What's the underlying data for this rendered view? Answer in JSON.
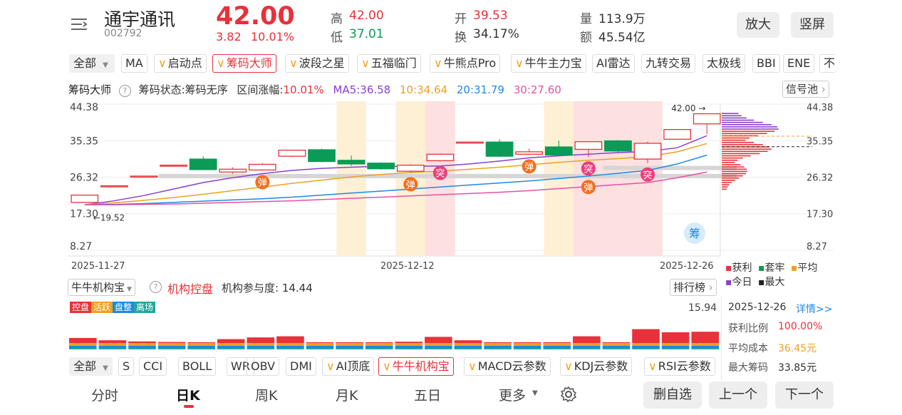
{
  "header": {
    "stock_name": "通宇通讯",
    "stock_code": "002792",
    "price": "42.00",
    "change": "3.82",
    "change_pct": "10.01%",
    "high_label": "高",
    "high": "42.00",
    "low_label": "低",
    "low": "37.01",
    "open_label": "开",
    "open": "39.53",
    "turnover_label": "换",
    "turnover": "34.17%",
    "volume_label": "量",
    "volume": "113.9万",
    "amount_label": "额",
    "amount": "45.54亿",
    "zoom_label": "放大",
    "portrait_label": "竖屏"
  },
  "indicator_tabs": {
    "all_label": "全部",
    "items": [
      "MA",
      "启动点",
      "筹码大师",
      "波段之星",
      "五福临门",
      "牛熊点Pro",
      "牛牛主力宝",
      "AI雷达",
      "九转交易",
      "太极线",
      "BBI",
      "ENE",
      "不"
    ],
    "v_items": [
      false,
      true,
      true,
      true,
      true,
      true,
      true,
      false,
      false,
      false,
      false,
      false,
      false
    ],
    "selected": "筹码大师"
  },
  "chip_bar": {
    "title": "筹码大师",
    "status": "筹码状态:筹码无序",
    "range_label": "区间涨幅:",
    "range_value": "10.01%",
    "ma5": "MA5:36.58",
    "ma10": "10:34.64",
    "ma20": "20:31.79",
    "ma30": "30:27.60",
    "signal_pool": "信号池"
  },
  "colors": {
    "up": "#e8313a",
    "down": "#0b9b56",
    "ma5": "#8a3fd1",
    "ma10": "#f0a020",
    "ma20": "#1e88e5",
    "ma30": "#e84fa8"
  },
  "chart_data": {
    "type": "candlestick",
    "y_ticks": [
      "44.38",
      "35.35",
      "26.32",
      "17.30",
      "8.27"
    ],
    "ylim": [
      8.27,
      44.38
    ],
    "x_labels": [
      "2025-11-27",
      "2025-12-12",
      "2025-12-26"
    ],
    "candles": [
      {
        "o": 20.1,
        "c": 21.9,
        "h": 21.9,
        "l": 20.1
      },
      {
        "o": 24.2,
        "c": 24.2,
        "h": 24.2,
        "l": 24.2
      },
      {
        "o": 26.6,
        "c": 26.6,
        "h": 26.6,
        "l": 26.6
      },
      {
        "o": 29.3,
        "c": 29.3,
        "h": 29.3,
        "l": 29.3
      },
      {
        "o": 30.8,
        "c": 28.2,
        "h": 31.5,
        "l": 28.2
      },
      {
        "o": 27.6,
        "c": 28.3,
        "h": 28.8,
        "l": 27.1
      },
      {
        "o": 28.1,
        "c": 29.5,
        "h": 29.8,
        "l": 27.9
      },
      {
        "o": 31.5,
        "c": 33.0,
        "h": 33.0,
        "l": 31.3
      },
      {
        "o": 33.1,
        "c": 30.2,
        "h": 33.4,
        "l": 30.0
      },
      {
        "o": 30.5,
        "c": 29.6,
        "h": 31.7,
        "l": 29.1
      },
      {
        "o": 29.8,
        "c": 28.4,
        "h": 30.0,
        "l": 28.2
      },
      {
        "o": 27.8,
        "c": 29.3,
        "h": 29.5,
        "l": 27.4
      },
      {
        "o": 30.4,
        "c": 32.0,
        "h": 32.2,
        "l": 30.2
      },
      {
        "o": 35.0,
        "c": 35.0,
        "h": 35.0,
        "l": 35.0
      },
      {
        "o": 35.0,
        "c": 31.5,
        "h": 35.7,
        "l": 31.4
      },
      {
        "o": 32.0,
        "c": 32.6,
        "h": 33.4,
        "l": 31.8
      },
      {
        "o": 33.8,
        "c": 31.8,
        "h": 35.4,
        "l": 31.8
      },
      {
        "o": 33.2,
        "c": 35.1,
        "h": 35.1,
        "l": 31.3
      },
      {
        "o": 35.3,
        "c": 32.8,
        "h": 35.5,
        "l": 32.2
      },
      {
        "o": 30.8,
        "c": 34.7,
        "h": 35.1,
        "l": 29.8
      },
      {
        "o": 35.7,
        "c": 38.1,
        "h": 38.2,
        "l": 35.7
      },
      {
        "o": 39.5,
        "c": 42.0,
        "h": 42.0,
        "l": 37.0
      }
    ],
    "series": [
      {
        "name": "MA5",
        "values": [
          19.5,
          20.5,
          21.8,
          23.4,
          25.0,
          26.2,
          27.2,
          28.0,
          28.5,
          28.8,
          29.0,
          29.0,
          29.1,
          29.6,
          30.3,
          31.1,
          31.6,
          32.0,
          32.4,
          32.7,
          33.6,
          36.58
        ]
      },
      {
        "name": "10",
        "values": [
          19.5,
          20.0,
          20.6,
          21.3,
          22.1,
          23.0,
          23.9,
          24.8,
          25.6,
          26.4,
          27.0,
          27.5,
          27.8,
          28.3,
          28.8,
          29.4,
          30.0,
          30.5,
          30.9,
          31.4,
          32.6,
          34.64
        ]
      },
      {
        "name": "20",
        "values": [
          19.5,
          19.6,
          19.8,
          20.1,
          20.4,
          20.7,
          21.0,
          21.4,
          21.9,
          22.4,
          22.9,
          23.4,
          23.9,
          24.4,
          24.9,
          25.4,
          26.0,
          26.6,
          27.3,
          28.0,
          29.6,
          31.79
        ]
      },
      {
        "name": "30",
        "values": [
          19.5,
          19.5,
          19.6,
          19.7,
          19.9,
          20.1,
          20.3,
          20.5,
          20.8,
          21.1,
          21.4,
          21.7,
          22.0,
          22.3,
          22.6,
          23.0,
          23.5,
          24.0,
          24.5,
          25.0,
          26.2,
          27.6
        ]
      }
    ],
    "low_marker": "19.52",
    "high_marker": "42.00",
    "bands": [
      {
        "type": "yellow",
        "from": 9,
        "to": 9
      },
      {
        "type": "yellow",
        "from": 11,
        "to": 11
      },
      {
        "type": "pink",
        "from": 12,
        "to": 12
      },
      {
        "type": "yellow",
        "from": 16,
        "to": 16
      },
      {
        "type": "pink",
        "from": 17,
        "to": 19
      }
    ],
    "signals": [
      {
        "i": 6,
        "text": "弹",
        "pos": "below"
      },
      {
        "i": 11,
        "text": "弹",
        "pos": "below"
      },
      {
        "i": 12,
        "text": "突",
        "pos": "below"
      },
      {
        "i": 15,
        "text": "弹",
        "pos": "below"
      },
      {
        "i": 17,
        "text": "突",
        "pos": "below"
      },
      {
        "i": 17,
        "text": "弹",
        "pos": "below2"
      },
      {
        "i": 19,
        "text": "突",
        "pos": "below"
      }
    ],
    "chip_badge": "筹"
  },
  "chip_legend": {
    "profit": "获利",
    "trapped": "套牢",
    "average": "平均",
    "today": "今日",
    "max": "最大"
  },
  "inst_bar": {
    "selector": "牛牛机构宝",
    "title": "机构控盘",
    "participation": "机构参与度: 14.44",
    "rank": "排行榜",
    "legend": [
      "控盘",
      "活跃",
      "盘整",
      "离场"
    ],
    "max_value": "15.94"
  },
  "inst_data": {
    "values": [
      [
        4.0,
        2.6,
        1.2,
        0.9
      ],
      [
        3.2,
        2.0,
        0.9,
        0.7
      ],
      [
        2.8,
        1.8,
        0.9,
        0.6
      ],
      [
        2.6,
        1.7,
        0.8,
        0.6
      ],
      [
        2.4,
        1.6,
        0.8,
        0.6
      ],
      [
        3.6,
        2.4,
        1.1,
        0.8
      ],
      [
        4.2,
        2.8,
        1.2,
        0.9
      ],
      [
        4.6,
        3.0,
        1.3,
        1.0
      ],
      [
        2.2,
        1.5,
        0.7,
        0.5
      ],
      [
        0.7,
        0.4,
        0.2,
        0.1
      ],
      [
        0.6,
        0.4,
        0.2,
        0.1
      ],
      [
        2.7,
        1.8,
        0.8,
        0.6
      ],
      [
        4.4,
        2.9,
        1.3,
        1.0
      ],
      [
        3.2,
        2.1,
        0.9,
        0.7
      ],
      [
        1.6,
        1.1,
        0.5,
        0.4
      ],
      [
        2.3,
        1.5,
        0.7,
        0.5
      ],
      [
        1.9,
        1.3,
        0.6,
        0.4
      ],
      [
        4.6,
        3.0,
        1.4,
        1.0
      ],
      [
        2.5,
        1.7,
        0.8,
        0.6
      ],
      [
        7.1,
        4.7,
        2.1,
        1.5
      ],
      [
        6.0,
        4.0,
        1.8,
        1.3
      ],
      [
        6.2,
        4.1,
        1.9,
        1.3
      ]
    ],
    "colors": [
      "#e8313a",
      "#f0a020",
      "#1e88e5",
      "#26a69a"
    ]
  },
  "chip_info": {
    "date": "2025-12-26",
    "detail": "详情>>",
    "profit_ratio_label": "获利比例",
    "profit_ratio": "100.00%",
    "avg_cost_label": "平均成本",
    "avg_cost": "36.45元",
    "max_chip_label": "最大筹码",
    "max_chip": "33.85元"
  },
  "bottom_tabs": {
    "all_label": "全部",
    "items": [
      "S",
      "CCI",
      "BOLL",
      "WR",
      "OBV",
      "DMI",
      "AI顶底",
      "牛牛机构宝",
      "MACD云参数",
      "KDJ云参数",
      "RSI云参数"
    ],
    "v_items": [
      false,
      false,
      false,
      false,
      false,
      false,
      true,
      true,
      true,
      true,
      true
    ],
    "selected": "牛牛机构宝"
  },
  "nav": {
    "items": [
      "分时",
      "日K",
      "周K",
      "月K",
      "五日",
      "更多"
    ],
    "selected": "日K",
    "delete": "删自选",
    "prev": "上一个",
    "next": "下一个"
  }
}
